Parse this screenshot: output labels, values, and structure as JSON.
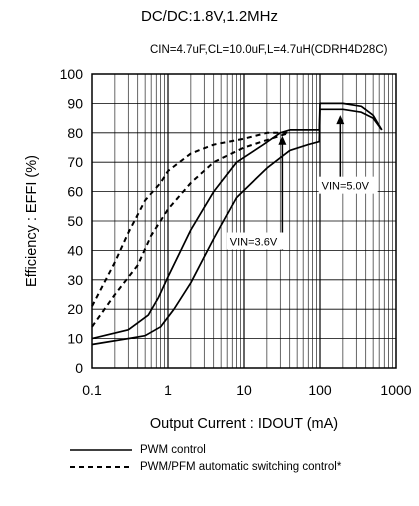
{
  "chart_data": {
    "type": "line",
    "title": "DC/DC:1.8V,1.2MHz",
    "subtitle": "CIN=4.7uF,CL=10.0uF,L=4.7uH(CDRH4D28C)",
    "xlabel": "Output Current : IDOUT (mA)",
    "ylabel": "Efficiency : EFFI (%)",
    "xscale": "log",
    "xlim": [
      0.1,
      1000
    ],
    "ylim": [
      0,
      100
    ],
    "xticks": [
      0.1,
      1,
      10,
      100,
      1000
    ],
    "xtick_labels": [
      "0.1",
      "1",
      "10",
      "100",
      "1000"
    ],
    "yticks": [
      0,
      10,
      20,
      30,
      40,
      50,
      60,
      70,
      80,
      90,
      100
    ],
    "ytick_labels": [
      "0",
      "10",
      "20",
      "30",
      "40",
      "50",
      "60",
      "70",
      "80",
      "90",
      "100"
    ],
    "grid": true,
    "series": [
      {
        "name": "PWM control",
        "style": "solid",
        "x": [
          0.1,
          0.3,
          0.55,
          0.75,
          1,
          2,
          4,
          8,
          18,
          30,
          40
        ],
        "y": [
          10,
          13,
          18,
          24,
          31,
          47,
          60,
          70,
          76,
          80,
          81
        ]
      },
      {
        "name": "PWM control",
        "style": "solid",
        "x": [
          0.1,
          0.3,
          0.5,
          0.8,
          1.2,
          2,
          4,
          8,
          20,
          40,
          70,
          98,
          100,
          200,
          350,
          500,
          650
        ],
        "y": [
          8,
          10,
          11,
          14,
          20,
          29,
          44,
          58,
          68,
          74,
          76,
          77,
          88,
          88,
          87,
          85,
          81
        ]
      },
      {
        "name": "PWM/PFM automatic switching control*",
        "style": "dashed",
        "x": [
          0.1,
          0.2,
          0.3,
          0.5,
          0.8,
          1,
          2,
          4,
          10,
          20,
          40
        ],
        "y": [
          21,
          36,
          46,
          57,
          63,
          67,
          73,
          76,
          78,
          80,
          80
        ]
      },
      {
        "name": "PWM/PFM automatic switching control*",
        "style": "dashed",
        "x": [
          0.1,
          0.2,
          0.4,
          0.6,
          1,
          2,
          4,
          10,
          30,
          40
        ],
        "y": [
          14,
          25,
          35,
          45,
          54,
          63,
          70,
          75,
          79,
          80
        ]
      },
      {
        "name": "",
        "style": "solid",
        "x": [
          40,
          98,
          100,
          200,
          350,
          500,
          650
        ],
        "y": [
          81,
          81,
          90,
          90,
          89,
          86,
          81
        ]
      }
    ],
    "annotations": [
      {
        "text": "VIN=5.0V",
        "arrow_x": 185,
        "arrow_from_y": 63,
        "arrow_to_y": 86,
        "label_x": 105,
        "label_y": 61
      },
      {
        "text": "VIN=3.6V",
        "arrow_x": 32,
        "arrow_from_y": 40,
        "arrow_to_y": 79,
        "label_x": 6.5,
        "label_y": 42
      }
    ]
  },
  "legend": [
    {
      "label": "PWM control",
      "style": "solid"
    },
    {
      "label": "PWM/PFM automatic switching control*",
      "style": "dashed"
    }
  ]
}
